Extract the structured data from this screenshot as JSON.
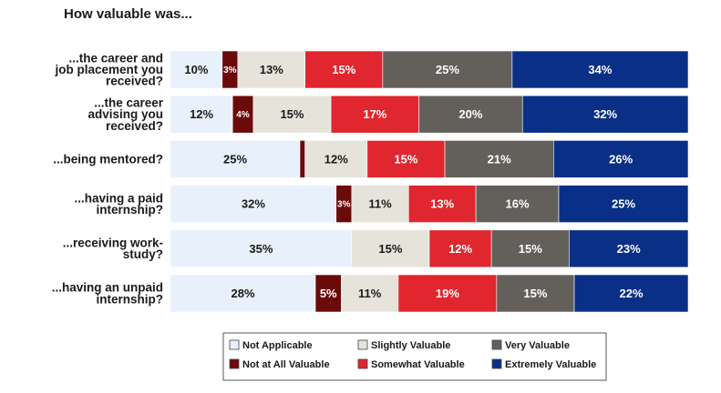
{
  "chart_data": {
    "type": "bar",
    "orientation": "horizontal",
    "stacked": true,
    "percent_stacked": true,
    "title": "How valuable was...",
    "categories": [
      "...the career and job placement you received?",
      "...the career advising you received?",
      "...being mentored?",
      "...having a paid internship?",
      "...receiving work-study?",
      "...having an unpaid internship?"
    ],
    "category_lines": [
      [
        "...the career and",
        "job placement you",
        "received?"
      ],
      [
        "...the career",
        "advising you",
        "received?"
      ],
      [
        "...being mentored?"
      ],
      [
        "...having a paid",
        "internship?"
      ],
      [
        "...receiving work-",
        "study?"
      ],
      [
        "...having an unpaid",
        "internship?"
      ]
    ],
    "series": [
      {
        "name": "Not Applicable",
        "color": "#e8f1fb",
        "text_color": "#1a1a1a",
        "values": [
          10,
          12,
          25,
          32,
          35,
          28
        ],
        "labels": [
          "10%",
          "12%",
          "25%",
          "32%",
          "35%",
          "28%"
        ]
      },
      {
        "name": "Not at All Valuable",
        "color": "#6b0a0a",
        "text_color": "#ffffff",
        "values": [
          3,
          4,
          1,
          3,
          0,
          5
        ],
        "labels": [
          "3%",
          "4%",
          "",
          "3%",
          "",
          "5%"
        ]
      },
      {
        "name": "Slightly Valuable",
        "color": "#e6e3da",
        "text_color": "#1a1a1a",
        "values": [
          13,
          15,
          12,
          11,
          15,
          11
        ],
        "labels": [
          "13%",
          "15%",
          "12%",
          "11%",
          "15%",
          "11%"
        ]
      },
      {
        "name": "Somewhat Valuable",
        "color": "#e0262e",
        "text_color": "#ffffff",
        "values": [
          15,
          17,
          15,
          13,
          12,
          19
        ],
        "labels": [
          "15%",
          "17%",
          "15%",
          "13%",
          "12%",
          "19%"
        ]
      },
      {
        "name": "Very Valuable",
        "color": "#63605c",
        "text_color": "#ffffff",
        "values": [
          25,
          20,
          21,
          16,
          15,
          15
        ],
        "labels": [
          "25%",
          "20%",
          "21%",
          "16%",
          "15%",
          "15%"
        ]
      },
      {
        "name": "Extremely Valuable",
        "color": "#0a2f86",
        "text_color": "#ffffff",
        "values": [
          34,
          32,
          26,
          25,
          23,
          22
        ],
        "labels": [
          "34%",
          "32%",
          "26%",
          "25%",
          "23%",
          "22%"
        ]
      }
    ],
    "legend_position": "bottom",
    "grid": false
  }
}
